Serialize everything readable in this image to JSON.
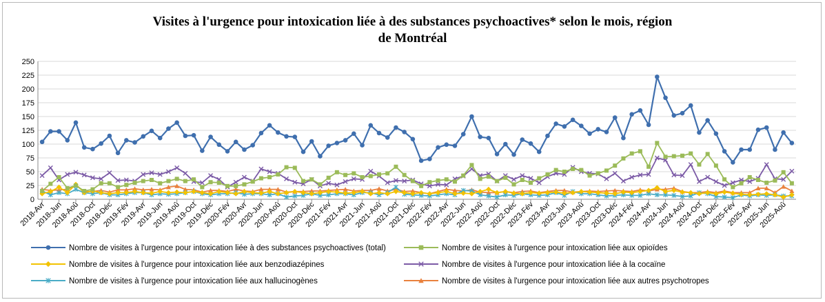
{
  "chart_data": {
    "type": "line",
    "title_line1": "Visites à l'urgence pour intoxication liée à des substances psychoactives* selon le mois, région",
    "title_line2": "de Montréal",
    "ylim": [
      0,
      250
    ],
    "yticks": [
      0,
      25,
      50,
      75,
      100,
      125,
      150,
      175,
      200,
      225,
      250
    ],
    "categories": [
      "2018-Avr",
      "2018-Mai",
      "2018-Jun",
      "2018-Juil",
      "2018-Aoû",
      "2018-Sep",
      "2018-Oct",
      "2018-Nov",
      "2018-Déc",
      "2019-Jan",
      "2019-Fév",
      "2019-Mar",
      "2019-Avr",
      "2019-Mai",
      "2019-Jun",
      "2019-Juil",
      "2019-Aoû",
      "2019-Sep",
      "2019-Oct",
      "2019-Nov",
      "2019-Déc",
      "2020-Jan",
      "2020-Fév",
      "2020-Mar",
      "2020-Avr",
      "2020-Mai",
      "2020-Jun",
      "2020-Juil",
      "2020-Aoû",
      "2020-Sep",
      "2020-Oct",
      "2020-Nov",
      "2020-Déc",
      "2021-Jan",
      "2021-Fév",
      "2021-Mar",
      "2021-Avr",
      "2021-Mai",
      "2021-Jun",
      "2021-Juil",
      "2021-Aoû",
      "2021-Sep",
      "2021-Oct",
      "2021-Nov",
      "2021-Déc",
      "2022-Jan",
      "2022-Fév",
      "2022-Mar",
      "2022-Avr",
      "2022-Mai",
      "2022-Jun",
      "2022-Juil",
      "2022-Aoû",
      "2022-Sep",
      "2022-Oct",
      "2022-Nov",
      "2022-Déc",
      "2023-Jan",
      "2023-Fév",
      "2023-Mar",
      "2023-Avr",
      "2023-Mai",
      "2023-Jun",
      "2023-Juil",
      "2023-Aoû",
      "2023-Sep",
      "2023-Oct",
      "2023-Nov",
      "2023-Déc",
      "2024-Jan",
      "2024-Fév",
      "2024-Mar",
      "2024-Avr",
      "2024-Mai",
      "2024-Jun",
      "2024-Juil",
      "2024-Aoû",
      "2024-Sep",
      "2024-Oct",
      "2024-Nov",
      "2024-Déc",
      "2025-Jan",
      "2025-Fév",
      "2025-Mar",
      "2025-Avr",
      "2025-Mai",
      "2025-Jun",
      "2025-Juil",
      "2025-Aoû",
      "2025-Sep"
    ],
    "labeled_ticks": [
      "2018-Avr",
      "2018-Jun",
      "2018-Aoû",
      "2018-Oct",
      "2018-Déc",
      "2019-Fév",
      "2019-Avr",
      "2019-Jun",
      "2019-Aoû",
      "2019-Oct",
      "2019-Déc",
      "2020-Fév",
      "2020-Avr",
      "2020-Jun",
      "2020-Aoû",
      "2020-Oct",
      "2020-Déc",
      "2021-Fév",
      "2021-Avr",
      "2021-Jun",
      "2021-Aoû",
      "2021-Oct",
      "2021-Déc",
      "2022-Fév",
      "2022-Avr",
      "2022-Jun",
      "2022-Aoû",
      "2022-Oct",
      "2022-Déc",
      "2023-Fév",
      "2023-Avr",
      "2023-Jun",
      "2023-Aoû",
      "2023-Oct",
      "2023-Déc",
      "2024-Fév",
      "2024-Avr",
      "2024-Jun",
      "2024-Aoû",
      "2024-Oct",
      "2024-Déc",
      "2025-Fév",
      "2025-Avr",
      "2025-Jun",
      "2025-Aoû"
    ],
    "series": [
      {
        "name": "Nombre de visites à l'urgence pour intoxication liée à des substances psychoactives (total)",
        "color": "#3f6fae",
        "marker": "circle",
        "values": [
          104,
          123,
          123,
          107,
          139,
          94,
          91,
          101,
          115,
          84,
          107,
          103,
          114,
          124,
          111,
          128,
          139,
          115,
          116,
          88,
          113,
          99,
          87,
          104,
          90,
          98,
          120,
          134,
          121,
          114,
          113,
          86,
          105,
          78,
          97,
          102,
          107,
          119,
          98,
          134,
          120,
          112,
          130,
          122,
          109,
          70,
          73,
          94,
          99,
          97,
          118,
          150,
          113,
          111,
          82,
          100,
          81,
          108,
          101,
          86,
          115,
          137,
          132,
          144,
          133,
          119,
          127,
          122,
          148,
          111,
          154,
          161,
          135,
          222,
          184,
          152,
          156,
          170,
          121,
          143,
          119,
          87,
          67,
          90,
          90,
          126,
          130,
          90,
          121,
          102
        ]
      },
      {
        "name": "Nombre de visites à l'urgence pour intoxication liée aux opioïdes",
        "color": "#9bbb59",
        "marker": "square",
        "values": [
          15,
          28,
          40,
          20,
          25,
          15,
          18,
          29,
          29,
          22,
          26,
          30,
          33,
          35,
          29,
          33,
          37,
          33,
          36,
          22,
          31,
          30,
          24,
          24,
          27,
          32,
          38,
          40,
          45,
          58,
          57,
          33,
          36,
          27,
          39,
          49,
          44,
          47,
          40,
          42,
          45,
          47,
          59,
          44,
          33,
          24,
          31,
          34,
          36,
          32,
          43,
          62,
          37,
          41,
          33,
          39,
          27,
          35,
          30,
          38,
          45,
          53,
          50,
          55,
          53,
          43,
          47,
          52,
          61,
          74,
          83,
          87,
          59,
          102,
          77,
          78,
          79,
          83,
          63,
          82,
          61,
          36,
          22,
          29,
          40,
          35,
          30,
          34,
          49,
          29
        ]
      },
      {
        "name": "Nombre de visites à l'urgence pour intoxication liée aux benzodiazépines",
        "color": "#f2c200",
        "marker": "diamond",
        "values": [
          10,
          14,
          22,
          12,
          27,
          12,
          15,
          12,
          10,
          12,
          12,
          14,
          12,
          11,
          14,
          12,
          13,
          12,
          14,
          12,
          10,
          14,
          12,
          10,
          14,
          12,
          11,
          14,
          10,
          12,
          14,
          12,
          10,
          12,
          14,
          13,
          11,
          12,
          14,
          10,
          12,
          10,
          14,
          12,
          10,
          12,
          10,
          12,
          14,
          10,
          11,
          10,
          14,
          18,
          12,
          14,
          11,
          10,
          12,
          11,
          12,
          13,
          11,
          12,
          14,
          13,
          12,
          11,
          10,
          13,
          12,
          14,
          16,
          21,
          14,
          16,
          13,
          12,
          10,
          12,
          10,
          13,
          11,
          9,
          8,
          9,
          10,
          8,
          4,
          8
        ]
      },
      {
        "name": "Nombre de visites à l'urgence pour intoxication liée à la cocaïne",
        "color": "#7b5aa6",
        "marker": "x",
        "values": [
          43,
          57,
          35,
          45,
          49,
          44,
          39,
          37,
          48,
          34,
          35,
          33,
          45,
          48,
          45,
          50,
          57,
          47,
          32,
          30,
          43,
          36,
          22,
          31,
          40,
          33,
          55,
          50,
          47,
          37,
          31,
          28,
          36,
          24,
          29,
          26,
          32,
          37,
          36,
          51,
          42,
          30,
          34,
          33,
          35,
          28,
          24,
          27,
          26,
          37,
          42,
          55,
          43,
          46,
          33,
          43,
          36,
          43,
          38,
          30,
          41,
          47,
          45,
          58,
          50,
          47,
          46,
          37,
          47,
          33,
          40,
          44,
          45,
          75,
          71,
          44,
          43,
          63,
          32,
          40,
          32,
          25,
          30,
          35,
          32,
          38,
          63,
          37,
          36,
          51
        ]
      },
      {
        "name": "Nombre de visites à l'urgence pour intoxication liée aux hallucinogènes",
        "color": "#4aacc6",
        "marker": "asterisk",
        "values": [
          15,
          8,
          12,
          10,
          18,
          12,
          10,
          12,
          8,
          8,
          10,
          12,
          12,
          8,
          10,
          9,
          10,
          12,
          14,
          10,
          8,
          10,
          10,
          12,
          9,
          10,
          10,
          8,
          10,
          4,
          6,
          7,
          10,
          7,
          8,
          10,
          10,
          8,
          12,
          12,
          8,
          12,
          22,
          9,
          8,
          7,
          6,
          8,
          10,
          8,
          16,
          15,
          8,
          6,
          4,
          8,
          7,
          10,
          8,
          7,
          8,
          12,
          7,
          14,
          10,
          10,
          8,
          6,
          7,
          8,
          7,
          7,
          10,
          8,
          8,
          7,
          5,
          6,
          12,
          10,
          5,
          4,
          3,
          8,
          6,
          8,
          7,
          8,
          6,
          6
        ]
      },
      {
        "name": "Nombre de visites à l'urgence pour intoxication liée aux autres psychotropes",
        "color": "#e9813d",
        "marker": "triangle",
        "values": [
          18,
          16,
          17,
          18,
          25,
          14,
          14,
          16,
          13,
          17,
          17,
          19,
          17,
          18,
          17,
          22,
          24,
          18,
          17,
          13,
          16,
          16,
          14,
          18,
          15,
          14,
          18,
          18,
          18,
          13,
          14,
          14,
          15,
          15,
          16,
          17,
          18,
          15,
          16,
          16,
          19,
          15,
          18,
          14,
          15,
          12,
          10,
          14,
          18,
          16,
          15,
          17,
          13,
          12,
          12,
          14,
          12,
          14,
          15,
          12,
          14,
          16,
          16,
          13,
          14,
          15,
          14,
          15,
          16,
          15,
          14,
          17,
          15,
          18,
          18,
          20,
          14,
          12,
          12,
          14,
          12,
          15,
          12,
          12,
          12,
          20,
          20,
          12,
          23,
          15
        ]
      }
    ],
    "legend": {
      "s0": "Nombre de visites à l'urgence pour intoxication liée à des substances psychoactives (total)",
      "s1": "Nombre de visites à l'urgence pour intoxication liée aux opioïdes",
      "s2": "Nombre de visites à l'urgence pour intoxication liée aux benzodiazépines",
      "s3": "Nombre de visites à l'urgence pour intoxication liée à la cocaïne",
      "s4": "Nombre de visites à l'urgence pour intoxication liée aux hallucinogènes",
      "s5": "Nombre de visites à l'urgence pour intoxication liée aux autres psychotropes"
    }
  }
}
